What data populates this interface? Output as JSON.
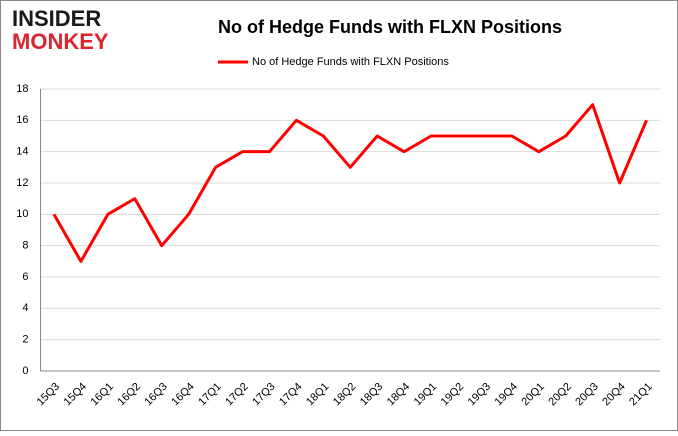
{
  "logo": {
    "line1": "INSIDER",
    "line2": "MONKEY"
  },
  "chart_data": {
    "type": "line",
    "title": "No of Hedge Funds with FLXN Positions",
    "categories": [
      "15Q3",
      "15Q4",
      "16Q1",
      "16Q2",
      "16Q3",
      "16Q4",
      "17Q1",
      "17Q2",
      "17Q3",
      "17Q4",
      "18Q1",
      "18Q2",
      "18Q3",
      "18Q4",
      "19Q1",
      "19Q2",
      "19Q3",
      "19Q4",
      "20Q1",
      "20Q2",
      "20Q3",
      "20Q4",
      "21Q1"
    ],
    "series": [
      {
        "name": "No of Hedge Funds with FLXN Positions",
        "color": "#ff0000",
        "values": [
          10,
          7,
          10,
          11,
          8,
          10,
          13,
          14,
          14,
          16,
          15,
          13,
          15,
          14,
          15,
          15,
          15,
          15,
          14,
          15,
          17,
          12,
          16
        ]
      }
    ],
    "ylim": [
      0,
      18
    ],
    "yticks": [
      0,
      2,
      4,
      6,
      8,
      10,
      12,
      14,
      16,
      18
    ],
    "grid": true,
    "legend": "top"
  }
}
